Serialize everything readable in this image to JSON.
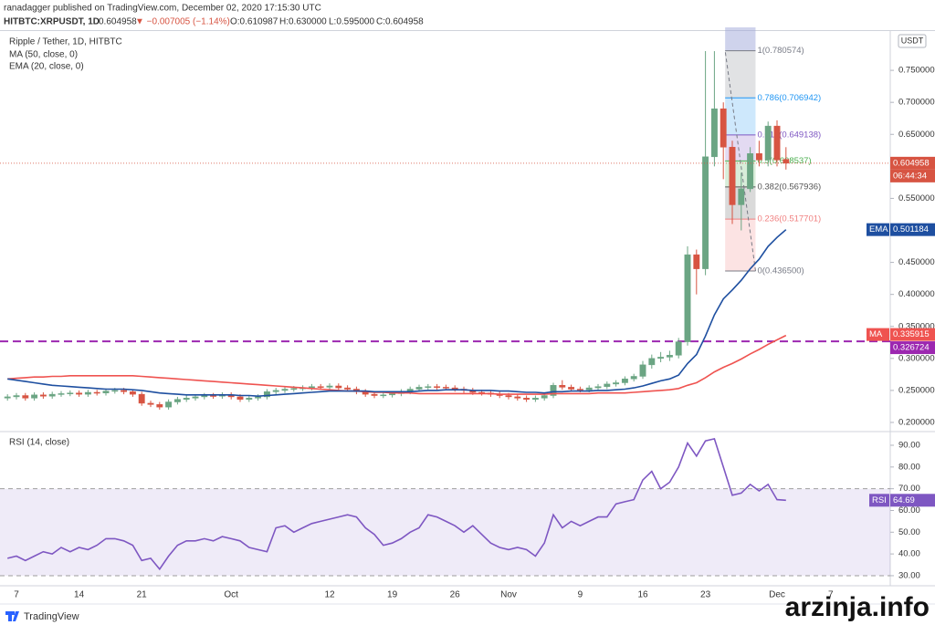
{
  "header": {
    "author_line": "ranadagger published on TradingView.com, December 02, 2020 17:15:30 UTC",
    "symbol": "HITBTC:XRPUSDT, 1D",
    "last": "0.604958",
    "change": "▼ −0.007005 (−1.14%)",
    "open": "O:0.610987",
    "high": "H:0.630000",
    "low": "L:0.595000",
    "close": "C:0.604958"
  },
  "brand": "TradingView",
  "watermark": "arzinja.info",
  "chart_data": [
    {
      "type": "candlestick",
      "title": "Ripple / Tether, 1D, HITBTC",
      "legend_labels": [
        "MA (50, close, 0)",
        "EMA (20, close, 0)"
      ],
      "currency": "USDT",
      "countdown": "06:44:34",
      "up_color": "#6ba583",
      "down_color": "#d75442",
      "categories": [
        null,
        "7",
        null,
        null,
        null,
        null,
        null,
        null,
        "14",
        null,
        null,
        null,
        null,
        null,
        null,
        "21",
        null,
        null,
        null,
        null,
        null,
        null,
        null,
        null,
        null,
        "Oct",
        null,
        null,
        null,
        null,
        null,
        null,
        null,
        null,
        null,
        null,
        "12",
        null,
        null,
        null,
        null,
        null,
        null,
        "19",
        null,
        null,
        null,
        null,
        null,
        null,
        "26",
        null,
        null,
        null,
        null,
        null,
        "Nov",
        null,
        null,
        null,
        null,
        null,
        null,
        null,
        "9",
        null,
        null,
        null,
        null,
        null,
        null,
        "16",
        null,
        null,
        null,
        null,
        null,
        null,
        "23",
        null,
        null,
        null,
        null,
        null,
        null,
        null,
        "Dec",
        null,
        null,
        null,
        null,
        null,
        "7"
      ],
      "open": [
        0.238,
        0.24,
        0.242,
        0.238,
        0.243,
        0.241,
        0.244,
        0.245,
        0.246,
        0.244,
        0.247,
        0.246,
        0.249,
        0.25,
        0.248,
        0.244,
        0.23,
        0.228,
        0.224,
        0.232,
        0.236,
        0.238,
        0.24,
        0.242,
        0.241,
        0.243,
        0.24,
        0.236,
        0.238,
        0.24,
        0.248,
        0.25,
        0.252,
        0.253,
        0.254,
        0.256,
        0.255,
        0.257,
        0.254,
        0.252,
        0.248,
        0.244,
        0.242,
        0.243,
        0.245,
        0.248,
        0.252,
        0.255,
        0.256,
        0.255,
        0.254,
        0.252,
        0.25,
        0.247,
        0.246,
        0.244,
        0.242,
        0.24,
        0.238,
        0.236,
        0.238,
        0.242,
        0.258,
        0.255,
        0.252,
        0.251,
        0.254,
        0.256,
        0.26,
        0.262,
        0.268,
        0.272,
        0.29,
        0.3,
        0.302,
        0.305,
        0.326,
        0.462,
        0.44,
        0.615,
        0.69,
        0.63,
        0.54,
        0.565,
        0.62,
        0.61,
        0.663,
        0.610987,
        null,
        null,
        null,
        null,
        null
      ],
      "high": [
        0.244,
        0.246,
        0.246,
        0.247,
        0.247,
        0.248,
        0.249,
        0.25,
        0.25,
        0.251,
        0.251,
        0.253,
        0.254,
        0.254,
        0.252,
        0.248,
        0.234,
        0.232,
        0.236,
        0.24,
        0.242,
        0.244,
        0.246,
        0.246,
        0.247,
        0.247,
        0.244,
        0.242,
        0.244,
        0.252,
        0.254,
        0.256,
        0.257,
        0.258,
        0.26,
        0.26,
        0.261,
        0.261,
        0.258,
        0.256,
        0.252,
        0.248,
        0.247,
        0.249,
        0.252,
        0.256,
        0.259,
        0.26,
        0.26,
        0.259,
        0.258,
        0.256,
        0.254,
        0.251,
        0.25,
        0.248,
        0.246,
        0.244,
        0.242,
        0.242,
        0.246,
        0.262,
        0.266,
        0.259,
        0.256,
        0.258,
        0.26,
        0.264,
        0.266,
        0.272,
        0.276,
        0.296,
        0.306,
        0.31,
        0.312,
        0.332,
        0.475,
        0.47,
        0.78,
        0.78,
        0.7,
        0.64,
        0.59,
        0.63,
        0.64,
        0.67,
        0.672,
        0.63,
        null,
        null,
        null,
        null,
        null
      ],
      "low": [
        0.234,
        0.236,
        0.234,
        0.234,
        0.237,
        0.237,
        0.24,
        0.241,
        0.24,
        0.24,
        0.242,
        0.242,
        0.245,
        0.244,
        0.24,
        0.226,
        0.224,
        0.22,
        0.22,
        0.228,
        0.232,
        0.234,
        0.236,
        0.237,
        0.237,
        0.236,
        0.232,
        0.232,
        0.234,
        0.236,
        0.244,
        0.246,
        0.248,
        0.249,
        0.25,
        0.251,
        0.251,
        0.25,
        0.248,
        0.244,
        0.24,
        0.238,
        0.238,
        0.239,
        0.241,
        0.244,
        0.248,
        0.251,
        0.251,
        0.25,
        0.248,
        0.246,
        0.243,
        0.242,
        0.24,
        0.238,
        0.236,
        0.234,
        0.232,
        0.232,
        0.234,
        0.238,
        0.251,
        0.248,
        0.247,
        0.247,
        0.25,
        0.252,
        0.256,
        0.258,
        0.264,
        0.268,
        0.284,
        0.294,
        0.296,
        0.3,
        0.32,
        0.4,
        0.43,
        0.6,
        0.58,
        0.51,
        0.5,
        0.56,
        0.6,
        0.6,
        0.6,
        0.595,
        null,
        null,
        null,
        null,
        null
      ],
      "close": [
        0.24,
        0.242,
        0.238,
        0.243,
        0.241,
        0.244,
        0.245,
        0.246,
        0.244,
        0.247,
        0.246,
        0.249,
        0.25,
        0.248,
        0.244,
        0.23,
        0.228,
        0.224,
        0.232,
        0.236,
        0.238,
        0.24,
        0.242,
        0.241,
        0.243,
        0.24,
        0.236,
        0.238,
        0.24,
        0.248,
        0.25,
        0.252,
        0.253,
        0.254,
        0.256,
        0.255,
        0.257,
        0.254,
        0.252,
        0.248,
        0.244,
        0.242,
        0.243,
        0.245,
        0.248,
        0.252,
        0.255,
        0.256,
        0.255,
        0.254,
        0.252,
        0.25,
        0.247,
        0.246,
        0.244,
        0.242,
        0.24,
        0.238,
        0.236,
        0.238,
        0.242,
        0.258,
        0.255,
        0.252,
        0.251,
        0.254,
        0.256,
        0.26,
        0.262,
        0.268,
        0.272,
        0.29,
        0.3,
        0.302,
        0.305,
        0.326,
        0.462,
        0.44,
        0.615,
        0.69,
        0.63,
        0.54,
        0.565,
        0.62,
        0.61,
        0.663,
        0.61,
        0.604958,
        null,
        null,
        null,
        null,
        null
      ],
      "series": [
        {
          "name": "MA",
          "color": "#ef5350",
          "values": [
            0.268,
            0.269,
            0.27,
            0.271,
            0.271,
            0.272,
            0.272,
            0.273,
            0.273,
            0.273,
            0.273,
            0.273,
            0.273,
            0.273,
            0.273,
            0.272,
            0.271,
            0.27,
            0.269,
            0.268,
            0.267,
            0.266,
            0.265,
            0.264,
            0.263,
            0.262,
            0.261,
            0.26,
            0.259,
            0.258,
            0.257,
            0.256,
            0.255,
            0.254,
            0.253,
            0.252,
            0.251,
            0.25,
            0.249,
            0.249,
            0.248,
            0.247,
            0.247,
            0.246,
            0.246,
            0.246,
            0.245,
            0.245,
            0.245,
            0.245,
            0.245,
            0.245,
            0.245,
            0.245,
            0.245,
            0.244,
            0.244,
            0.244,
            0.244,
            0.244,
            0.244,
            0.245,
            0.245,
            0.245,
            0.245,
            0.245,
            0.246,
            0.246,
            0.246,
            0.246,
            0.247,
            0.248,
            0.249,
            0.25,
            0.251,
            0.253,
            0.258,
            0.262,
            0.27,
            0.279,
            0.286,
            0.292,
            0.299,
            0.307,
            0.314,
            0.322,
            0.329,
            0.335915,
            null,
            null,
            null,
            null,
            null
          ]
        },
        {
          "name": "EMA",
          "color": "#1e4fa0",
          "values": [
            0.268,
            0.266,
            0.264,
            0.262,
            0.26,
            0.258,
            0.257,
            0.256,
            0.255,
            0.254,
            0.253,
            0.252,
            0.252,
            0.252,
            0.251,
            0.25,
            0.248,
            0.246,
            0.245,
            0.244,
            0.243,
            0.243,
            0.243,
            0.243,
            0.243,
            0.243,
            0.242,
            0.242,
            0.241,
            0.242,
            0.243,
            0.244,
            0.245,
            0.246,
            0.247,
            0.248,
            0.249,
            0.249,
            0.249,
            0.249,
            0.249,
            0.248,
            0.248,
            0.248,
            0.248,
            0.248,
            0.249,
            0.25,
            0.25,
            0.251,
            0.251,
            0.251,
            0.25,
            0.25,
            0.25,
            0.249,
            0.249,
            0.248,
            0.247,
            0.247,
            0.246,
            0.248,
            0.248,
            0.249,
            0.249,
            0.249,
            0.25,
            0.25,
            0.251,
            0.252,
            0.254,
            0.257,
            0.261,
            0.265,
            0.268,
            0.274,
            0.292,
            0.306,
            0.335,
            0.368,
            0.393,
            0.407,
            0.422,
            0.44,
            0.455,
            0.475,
            0.489,
            0.501184,
            null,
            null,
            null,
            null,
            null
          ]
        }
      ],
      "hline": {
        "value": 0.326724,
        "color": "#9c27b0"
      },
      "fib_levels": [
        {
          "value": 0.780574,
          "label": "1(0.780574)"
        },
        {
          "value": 0.706942,
          "label": "0.786(0.706942)"
        },
        {
          "value": 0.649138,
          "label": "0.618(0.649138)"
        },
        {
          "value": 0.608537,
          "label": "0.5(0.608537)"
        },
        {
          "value": 0.567936,
          "label": "0.382(0.567936)"
        },
        {
          "value": 0.517701,
          "label": "0.236(0.517701)"
        },
        {
          "value": 0.4365,
          "label": "0(0.436500)"
        }
      ],
      "fib_colors": [
        "#787b86",
        "#2196f3",
        "#7e57c2",
        "#4caf50",
        "#555555",
        "#f08080",
        "#787b86"
      ],
      "ylim": [
        0.19,
        0.81
      ],
      "yticks": [
        {
          "value": 0.75,
          "label": "0.750000"
        },
        {
          "value": 0.7,
          "label": "0.700000"
        },
        {
          "value": 0.65,
          "label": "0.650000"
        },
        {
          "value": 0.55,
          "label": "0.550000"
        },
        {
          "value": 0.45,
          "label": "0.450000"
        },
        {
          "value": 0.4,
          "label": "0.400000"
        },
        {
          "value": 0.35,
          "label": "0.350000"
        },
        {
          "value": 0.3,
          "label": "0.300000"
        },
        {
          "value": 0.25,
          "label": "0.250000"
        },
        {
          "value": 0.2,
          "label": "0.200000"
        }
      ]
    },
    {
      "type": "line",
      "title": "RSI (14, close)",
      "band": [
        30,
        70
      ],
      "series": [
        {
          "name": "RSI",
          "color": "#7e57c2",
          "values": [
            38,
            39,
            37,
            39,
            41,
            40,
            43,
            41,
            43,
            42,
            44,
            47,
            47,
            46,
            44,
            37,
            38,
            33,
            39,
            44,
            46,
            46,
            47,
            46,
            48,
            47,
            46,
            43,
            42,
            41,
            52,
            53,
            50,
            52,
            54,
            55,
            56,
            57,
            58,
            57,
            52,
            49,
            44,
            45,
            47,
            50,
            52,
            58,
            57,
            55,
            53,
            50,
            53,
            49,
            45,
            43,
            42,
            43,
            42,
            39,
            45,
            58,
            52,
            55,
            53,
            55,
            57,
            57,
            63,
            64,
            65,
            74,
            78,
            70,
            73,
            80,
            91,
            85,
            92,
            93,
            80,
            67,
            68,
            72,
            69,
            72,
            65,
            64.69,
            null,
            null,
            null,
            null,
            null
          ]
        }
      ],
      "ylim": [
        26.2,
        94.2
      ],
      "yticks": [
        {
          "value": 90,
          "label": "90.00"
        },
        {
          "value": 80,
          "label": "80.00"
        },
        {
          "value": 70,
          "label": "70.00"
        },
        {
          "value": 60,
          "label": "60.00"
        },
        {
          "value": 50,
          "label": "50.00"
        },
        {
          "value": 40,
          "label": "40.00"
        },
        {
          "value": 30,
          "label": "30.00"
        }
      ]
    }
  ]
}
